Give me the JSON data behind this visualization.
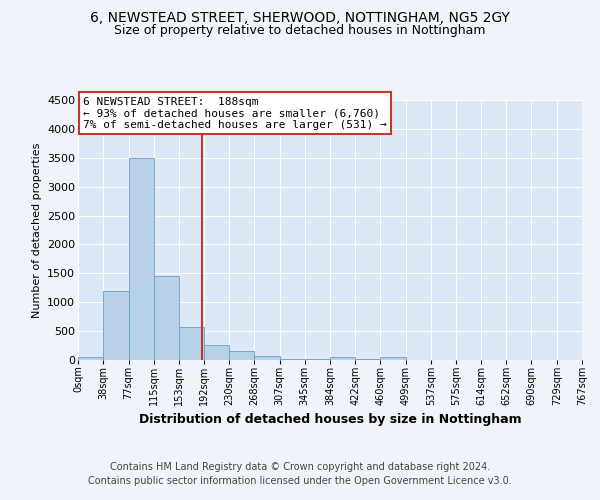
{
  "title1": "6, NEWSTEAD STREET, SHERWOOD, NOTTINGHAM, NG5 2GY",
  "title2": "Size of property relative to detached houses in Nottingham",
  "xlabel": "Distribution of detached houses by size in Nottingham",
  "ylabel": "Number of detached properties",
  "footnote1": "Contains HM Land Registry data © Crown copyright and database right 2024.",
  "footnote2": "Contains public sector information licensed under the Open Government Licence v3.0.",
  "annotation_line1": "6 NEWSTEAD STREET:  188sqm",
  "annotation_line2": "← 93% of detached houses are smaller (6,760)",
  "annotation_line3": "7% of semi-detached houses are larger (531) →",
  "bar_left_edges": [
    0,
    38,
    77,
    115,
    153,
    192,
    230,
    268,
    307,
    345,
    384,
    422,
    460,
    499,
    537,
    575,
    614,
    652,
    690,
    729
  ],
  "bar_widths": [
    38,
    39,
    38,
    38,
    39,
    38,
    38,
    39,
    38,
    39,
    38,
    38,
    39,
    38,
    38,
    39,
    38,
    38,
    39,
    38
  ],
  "bar_heights": [
    50,
    1200,
    3490,
    1450,
    575,
    255,
    150,
    75,
    25,
    25,
    50,
    25,
    50,
    5,
    5,
    5,
    5,
    5,
    5,
    5
  ],
  "bar_color": "#b8d0e8",
  "bar_edgecolor": "#6a9fc8",
  "vline_color": "#c0392b",
  "vline_x": 188,
  "annotation_box_color": "#c0392b",
  "ylim": [
    0,
    4500
  ],
  "yticks": [
    0,
    500,
    1000,
    1500,
    2000,
    2500,
    3000,
    3500,
    4000,
    4500
  ],
  "xtick_labels": [
    "0sqm",
    "38sqm",
    "77sqm",
    "115sqm",
    "153sqm",
    "192sqm",
    "230sqm",
    "268sqm",
    "307sqm",
    "345sqm",
    "384sqm",
    "422sqm",
    "460sqm",
    "499sqm",
    "537sqm",
    "575sqm",
    "614sqm",
    "652sqm",
    "690sqm",
    "729sqm",
    "767sqm"
  ],
  "xtick_positions": [
    0,
    38,
    77,
    115,
    153,
    192,
    230,
    268,
    307,
    345,
    384,
    422,
    460,
    499,
    537,
    575,
    614,
    652,
    690,
    729,
    767
  ],
  "bg_color": "#dce8f5",
  "fig_bg_color": "#f0f4fa",
  "title1_fontsize": 10,
  "title2_fontsize": 9,
  "ylabel_fontsize": 8,
  "xlabel_fontsize": 9,
  "tick_fontsize": 7,
  "ytick_fontsize": 8,
  "footnote_fontsize": 7,
  "annotation_fontsize": 8,
  "xlim_max": 767
}
